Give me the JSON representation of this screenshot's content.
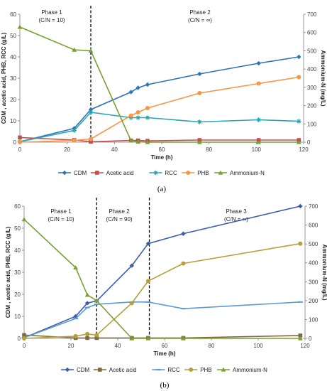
{
  "chart_data": [
    {
      "type": "line",
      "panel_label": "(a)",
      "xlabel": "Time (h)",
      "ylabel": "CDM , acetic acid,  PHB, RCC (g/L)",
      "y2label": "Ammonium-N (mg/L)",
      "xlim": [
        0,
        120
      ],
      "ylim": [
        0,
        60
      ],
      "y2lim": [
        0,
        700
      ],
      "xticks": [
        "0",
        "20",
        "40",
        "60",
        "80",
        "100",
        "120"
      ],
      "yticks": [
        "0",
        "10",
        "20",
        "30",
        "40",
        "50",
        "60"
      ],
      "y2ticks": [
        "0",
        "100",
        "200",
        "300",
        "400",
        "500",
        "600",
        "700"
      ],
      "grid": false,
      "legend_position": "bottom",
      "phase_lines": [
        30
      ],
      "phase_labels": [
        {
          "line1": "Phase 1",
          "line2": "(C/N = 10)"
        },
        {
          "line1": "Phase 2",
          "line2": "(C/N = ∞)"
        }
      ],
      "series": [
        {
          "name": "CDM",
          "axis": "left",
          "color": "#2e75b6",
          "marker": "diamond",
          "x": [
            0,
            23,
            30,
            47,
            50,
            54,
            76,
            101,
            118
          ],
          "y": [
            0.2,
            6.5,
            15.3,
            23.5,
            25.5,
            27,
            32,
            37,
            40
          ]
        },
        {
          "name": "Acetic acid",
          "axis": "left",
          "color": "#c0504d",
          "marker": "square",
          "x": [
            0,
            23,
            30,
            47,
            50,
            54,
            76,
            101,
            118
          ],
          "y": [
            2.2,
            1.0,
            0.2,
            0.8,
            0.8,
            0.6,
            1.0,
            1.0,
            1.0
          ]
        },
        {
          "name": "RCC",
          "axis": "left",
          "color": "#2aa5b5",
          "marker": "star",
          "x": [
            0,
            23,
            30,
            47,
            50,
            54,
            76,
            101,
            118
          ],
          "y": [
            0.2,
            5.5,
            14,
            11.5,
            11.5,
            11.5,
            9.5,
            10.5,
            9.8
          ]
        },
        {
          "name": "PHB",
          "axis": "left",
          "color": "#f79646",
          "marker": "circle",
          "x": [
            0,
            23,
            30,
            47,
            50,
            54,
            76,
            101,
            118
          ],
          "y": [
            0,
            0.8,
            1.5,
            12.5,
            14,
            16,
            23,
            27.5,
            30.5
          ]
        },
        {
          "name": "Ammonium-N",
          "axis": "right",
          "color": "#77a033",
          "marker": "triangle",
          "x": [
            0,
            23,
            30,
            47,
            50,
            54,
            76,
            101,
            118
          ],
          "y": [
            630,
            505,
            500,
            8,
            2,
            0,
            0,
            0,
            0
          ]
        }
      ]
    },
    {
      "type": "line",
      "panel_label": "(b)",
      "xlabel": "Time (h)",
      "ylabel": "CDM , acetic acid, PHB, RCC (g/L)",
      "y2label": "Ammonium-N (mg/L)",
      "xlim": [
        0,
        120
      ],
      "ylim": [
        0,
        60
      ],
      "y2lim": [
        0,
        700
      ],
      "xticks": [
        "0",
        "20",
        "40",
        "60",
        "80",
        "100",
        "120"
      ],
      "yticks": [
        "0",
        "10",
        "20",
        "30",
        "40",
        "50",
        "60"
      ],
      "y2ticks": [
        "0",
        "100",
        "200",
        "300",
        "400",
        "500",
        "600",
        "700"
      ],
      "grid": false,
      "legend_position": "bottom",
      "phase_lines": [
        31,
        53.5
      ],
      "phase_labels": [
        {
          "line1": "Phase 1",
          "line2": "(C/N = 10)"
        },
        {
          "line1": "Phase 2",
          "line2": "(C/N = 90)"
        },
        {
          "line1": "Phase 3",
          "line2": "(C/N = ∞)"
        }
      ],
      "series": [
        {
          "name": "CDM",
          "axis": "left",
          "color": "#3a5ea8",
          "marker": "diamond",
          "x": [
            0,
            22,
            27,
            31,
            46,
            53,
            68,
            118
          ],
          "y": [
            0.3,
            10,
            16,
            17,
            33,
            43,
            47.5,
            60
          ]
        },
        {
          "name": "Acetic acid",
          "axis": "left",
          "color": "#7f6a3d",
          "marker": "square",
          "x": [
            0,
            22,
            27,
            31,
            46,
            53,
            68,
            118
          ],
          "y": [
            1.5,
            0.2,
            0.2,
            0.2,
            0.2,
            0.2,
            0.2,
            1.3
          ]
        },
        {
          "name": "RCC",
          "axis": "left",
          "color": "#5b9bd5",
          "marker": "dash",
          "x": [
            0,
            22,
            27,
            31,
            46,
            53,
            68,
            118
          ],
          "y": [
            0.3,
            9,
            14,
            15.5,
            16.5,
            16.5,
            13.5,
            16.5
          ]
        },
        {
          "name": "PHB",
          "axis": "left",
          "color": "#b5a13b",
          "marker": "circle",
          "x": [
            0,
            22,
            27,
            31,
            46,
            53,
            68,
            118
          ],
          "y": [
            0,
            1,
            2,
            1.5,
            16,
            26,
            34,
            43
          ]
        },
        {
          "name": "Ammonium-N",
          "axis": "right",
          "color": "#77a033",
          "marker": "triangle",
          "x": [
            0,
            22,
            27,
            31,
            46,
            53,
            68,
            118
          ],
          "y": [
            630,
            375,
            230,
            200,
            0,
            0,
            0,
            0
          ]
        }
      ]
    }
  ]
}
